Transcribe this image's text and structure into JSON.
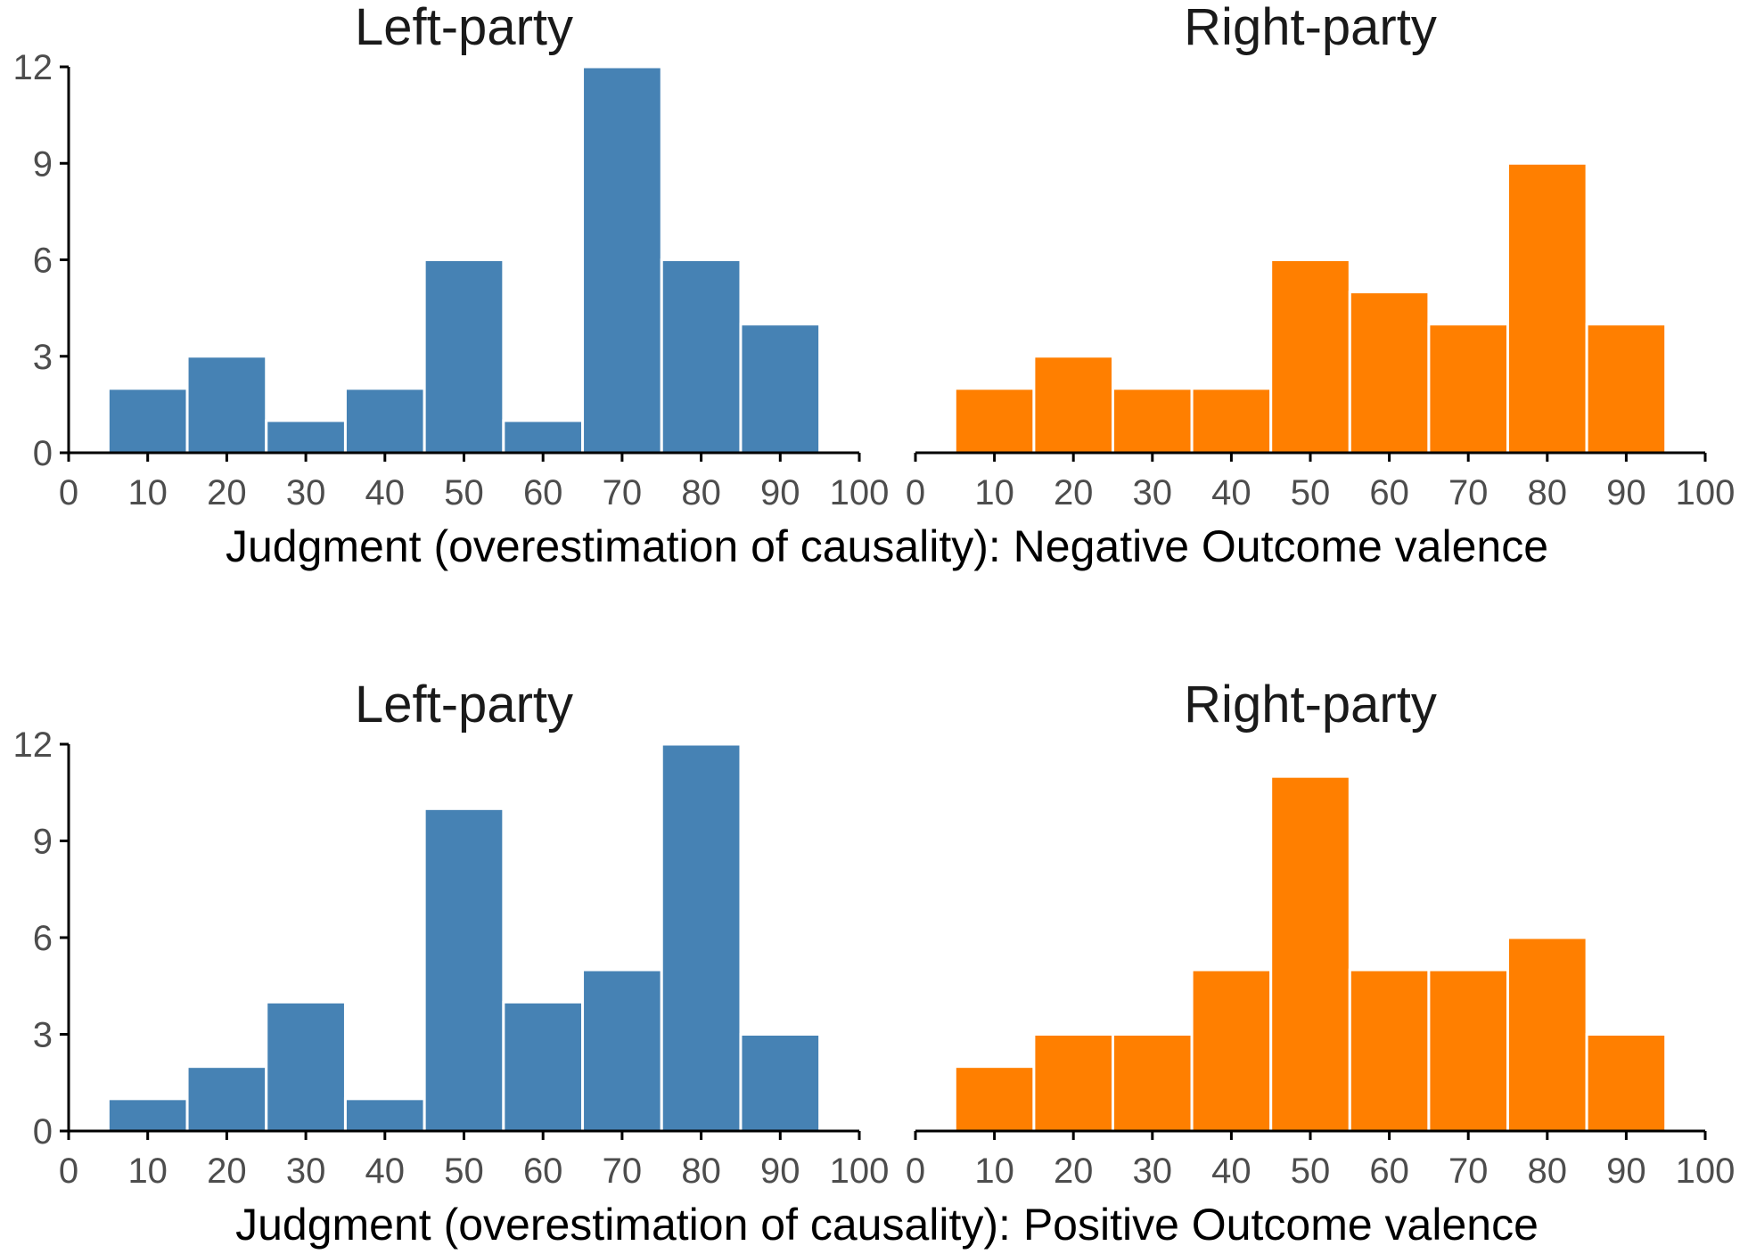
{
  "chart_data": [
    {
      "type": "bar",
      "title": "Left-party",
      "group": "Negative Outcome valence",
      "color": "#4682B4",
      "bins": [
        10,
        20,
        30,
        40,
        50,
        60,
        70,
        80,
        90
      ],
      "values": [
        2,
        3,
        1,
        2,
        6,
        1,
        12,
        6,
        4
      ],
      "xlim": [
        0,
        100
      ],
      "ylim": [
        0,
        12
      ],
      "xticks": [
        "0",
        "10",
        "20",
        "30",
        "40",
        "50",
        "60",
        "70",
        "80",
        "90",
        "100"
      ],
      "yticks": [
        "0",
        "3",
        "6",
        "9",
        "12"
      ]
    },
    {
      "type": "bar",
      "title": "Right-party",
      "group": "Negative Outcome valence",
      "color": "#FF7F00",
      "bins": [
        10,
        20,
        30,
        40,
        50,
        60,
        70,
        80,
        90
      ],
      "values": [
        2,
        3,
        2,
        2,
        6,
        5,
        4,
        9,
        4
      ],
      "xlim": [
        0,
        100
      ],
      "ylim": [
        0,
        12
      ],
      "xticks": [
        "0",
        "10",
        "20",
        "30",
        "40",
        "50",
        "60",
        "70",
        "80",
        "90",
        "100"
      ],
      "yticks": []
    },
    {
      "type": "bar",
      "title": "Left-party",
      "group": "Positive Outcome valence",
      "color": "#4682B4",
      "bins": [
        10,
        20,
        30,
        40,
        50,
        60,
        70,
        80,
        90
      ],
      "values": [
        1,
        2,
        4,
        1,
        10,
        4,
        5,
        12,
        3
      ],
      "xlim": [
        0,
        100
      ],
      "ylim": [
        0,
        12
      ],
      "xticks": [
        "0",
        "10",
        "20",
        "30",
        "40",
        "50",
        "60",
        "70",
        "80",
        "90",
        "100"
      ],
      "yticks": [
        "0",
        "3",
        "6",
        "9",
        "12"
      ]
    },
    {
      "type": "bar",
      "title": "Right-party",
      "group": "Positive Outcome valence",
      "color": "#FF7F00",
      "bins": [
        10,
        20,
        30,
        40,
        50,
        60,
        70,
        80,
        90
      ],
      "values": [
        2,
        3,
        3,
        5,
        11,
        5,
        5,
        6,
        3
      ],
      "xlim": [
        0,
        100
      ],
      "ylim": [
        0,
        12
      ],
      "xticks": [
        "0",
        "10",
        "20",
        "30",
        "40",
        "50",
        "60",
        "70",
        "80",
        "90",
        "100"
      ],
      "yticks": []
    }
  ],
  "xlabels": [
    "Judgment (overestimation of causality): Negative Outcome valence",
    "Judgment (overestimation of causality): Positive Outcome valence"
  ]
}
